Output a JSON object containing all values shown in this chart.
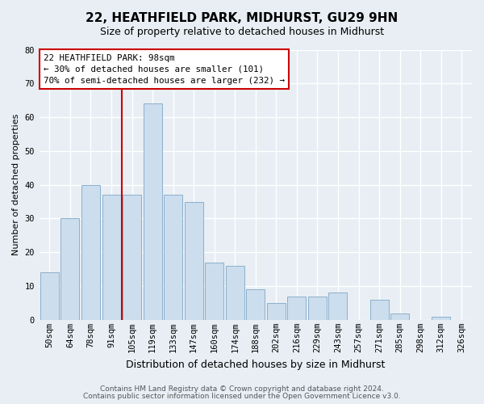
{
  "title": "22, HEATHFIELD PARK, MIDHURST, GU29 9HN",
  "subtitle": "Size of property relative to detached houses in Midhurst",
  "xlabel": "Distribution of detached houses by size in Midhurst",
  "ylabel": "Number of detached properties",
  "footer_line1": "Contains HM Land Registry data © Crown copyright and database right 2024.",
  "footer_line2": "Contains public sector information licensed under the Open Government Licence v3.0.",
  "categories": [
    "50sqm",
    "64sqm",
    "78sqm",
    "91sqm",
    "105sqm",
    "119sqm",
    "133sqm",
    "147sqm",
    "160sqm",
    "174sqm",
    "188sqm",
    "202sqm",
    "216sqm",
    "229sqm",
    "243sqm",
    "257sqm",
    "271sqm",
    "285sqm",
    "298sqm",
    "312sqm",
    "326sqm"
  ],
  "values": [
    14,
    30,
    40,
    37,
    37,
    64,
    37,
    35,
    17,
    16,
    9,
    5,
    7,
    7,
    8,
    0,
    6,
    2,
    0,
    1,
    0
  ],
  "bar_color": "#ccdded",
  "bar_edge_color": "#8ab0cc",
  "subject_line_color": "#cc0000",
  "annotation_title": "22 HEATHFIELD PARK: 98sqm",
  "annotation_line1": "← 30% of detached houses are smaller (101)",
  "annotation_line2": "70% of semi-detached houses are larger (232) →",
  "annotation_box_facecolor": "#ffffff",
  "annotation_box_edgecolor": "#cc0000",
  "ylim": [
    0,
    80
  ],
  "yticks": [
    0,
    10,
    20,
    30,
    40,
    50,
    60,
    70,
    80
  ],
  "background_color": "#e8eef4",
  "grid_color": "#ffffff",
  "title_fontsize": 11,
  "subtitle_fontsize": 9,
  "xlabel_fontsize": 9,
  "ylabel_fontsize": 8,
  "tick_fontsize": 7.5,
  "footer_fontsize": 6.5
}
